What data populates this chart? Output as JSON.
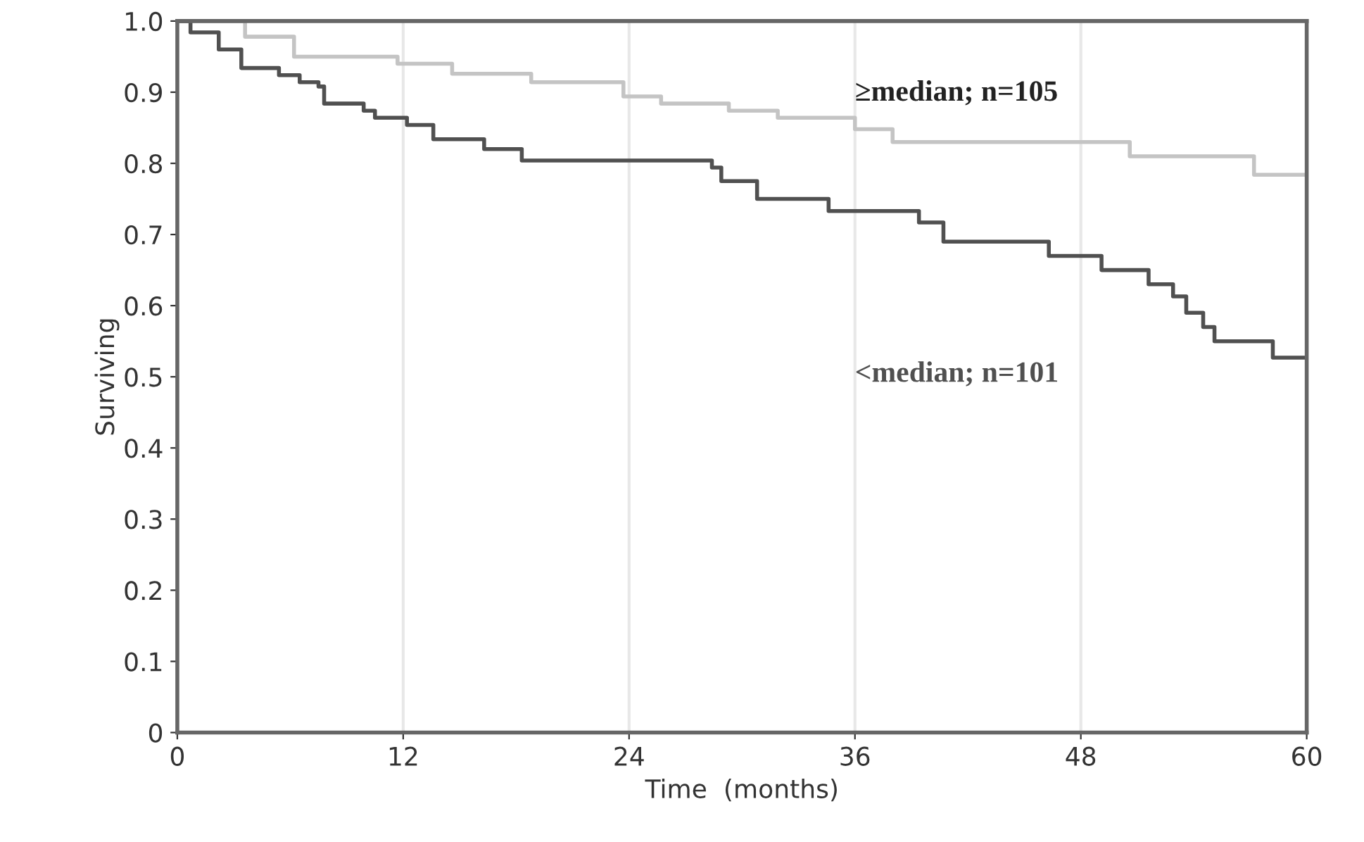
{
  "chart_data": {
    "type": "step",
    "xlabel": "Time  (months)",
    "ylabel": "Surviving",
    "xlim": [
      0,
      60
    ],
    "ylim": [
      0,
      1.0
    ],
    "xticks": [
      0,
      12,
      24,
      36,
      48,
      60
    ],
    "yticks": [
      0,
      0.1,
      0.2,
      0.3,
      0.4,
      0.5,
      0.6,
      0.7,
      0.8,
      0.9,
      {
        "value": 1.0,
        "label": "1.0"
      }
    ],
    "grid": "x",
    "line_style": "solid",
    "marker": "none",
    "series": [
      {
        "name": "≥median; n=105",
        "color": "#c4c4c4",
        "x": [
          0,
          3.6,
          6.2,
          11.7,
          14.6,
          18.8,
          23.7,
          25.7,
          29.3,
          31.9,
          36,
          38,
          50.6,
          57.2,
          60
        ],
        "values": [
          1.0,
          0.978,
          0.95,
          0.94,
          0.926,
          0.914,
          0.894,
          0.884,
          0.874,
          0.864,
          0.848,
          0.83,
          0.81,
          0.784,
          0.784
        ]
      },
      {
        "name": "<median; n=101",
        "color": "#505050",
        "x": [
          0,
          0.7,
          2.2,
          3.4,
          5.4,
          6.5,
          7.5,
          7.8,
          9.9,
          10.5,
          12.2,
          13.6,
          16.3,
          18.3,
          28.4,
          28.9,
          30.8,
          34.6,
          39.4,
          40.7,
          46.3,
          49.1,
          51.6,
          52.9,
          53.6,
          54.5,
          55.1,
          58.2,
          60
        ],
        "values": [
          1.0,
          0.984,
          0.96,
          0.934,
          0.924,
          0.914,
          0.908,
          0.884,
          0.874,
          0.864,
          0.854,
          0.834,
          0.82,
          0.804,
          0.794,
          0.775,
          0.75,
          0.733,
          0.717,
          0.69,
          0.67,
          0.65,
          0.63,
          0.613,
          0.59,
          0.57,
          0.55,
          0.527,
          0.527
        ]
      }
    ]
  }
}
